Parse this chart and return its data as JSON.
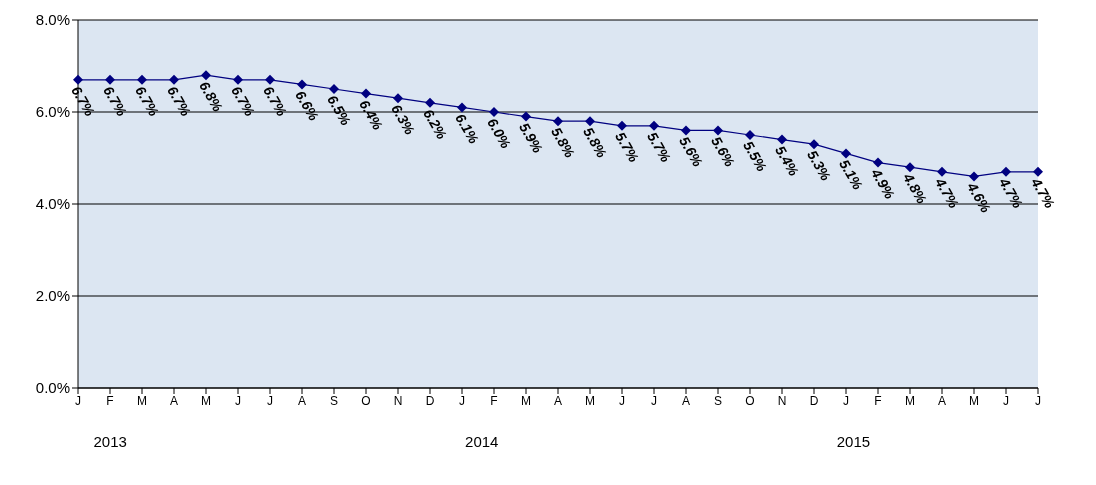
{
  "chart_data": {
    "type": "line",
    "categories": [
      "J",
      "F",
      "M",
      "A",
      "M",
      "J",
      "J",
      "A",
      "S",
      "O",
      "N",
      "D",
      "J",
      "F",
      "M",
      "A",
      "M",
      "J",
      "J",
      "A",
      "S",
      "O",
      "N",
      "D",
      "J",
      "F",
      "M",
      "A",
      "M",
      "J",
      "J"
    ],
    "series": [
      {
        "color": "#000080",
        "values": [
          6.7,
          6.7,
          6.7,
          6.7,
          6.8,
          6.7,
          6.7,
          6.6,
          6.5,
          6.4,
          6.3,
          6.2,
          6.1,
          6.0,
          5.9,
          5.8,
          5.8,
          5.7,
          5.7,
          5.6,
          5.6,
          5.5,
          5.4,
          5.3,
          5.1,
          4.9,
          4.8,
          4.7,
          4.6,
          4.7,
          4.7
        ],
        "value_labels": [
          "6.7%",
          "6.7%",
          "6.7%",
          "6.7%",
          "6.8%",
          "6.7%",
          "6.7%",
          "6.6%",
          "6.5%",
          "6.4%",
          "6.3%",
          "6.2%",
          "6.1%",
          "6.0%",
          "5.9%",
          "5.8%",
          "5.8%",
          "5.7%",
          "5.7%",
          "5.6%",
          "5.6%",
          "5.5%",
          "5.4%",
          "5.3%",
          "5.1%",
          "4.9%",
          "4.8%",
          "4.7%",
          "4.6%",
          "4.7%",
          "4.7%"
        ]
      }
    ],
    "ylim": [
      0,
      8
    ],
    "yticks": [
      {
        "value": 0,
        "label": "0.0%"
      },
      {
        "value": 2,
        "label": "2.0%"
      },
      {
        "value": 4,
        "label": "4.0%"
      },
      {
        "value": 6,
        "label": "6.0%"
      },
      {
        "value": 8,
        "label": "8.0%"
      }
    ],
    "grid": "y",
    "legend": false,
    "marker": "diamond",
    "line_style": "solid",
    "annotations": [
      "2013",
      "2014",
      "2015"
    ]
  }
}
